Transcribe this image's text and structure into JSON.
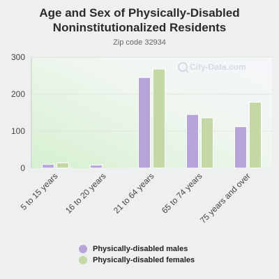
{
  "chart_data": {
    "type": "bar",
    "title_line1": "Age and Sex of Physically-Disabled",
    "title_line2": "Noninstitutionalized Residents",
    "subtitle": "Zip code 32934",
    "watermark": "City-Data.com",
    "categories": [
      "5 to 15 years",
      "16 to 20 years",
      "21 to 64 years",
      "65 to 74 years",
      "75 years and over"
    ],
    "series": [
      {
        "name": "Physically-disabled males",
        "color": "#b7a4d8",
        "values": [
          10,
          8,
          245,
          145,
          112
        ]
      },
      {
        "name": "Physically-disabled females",
        "color": "#c4d8a6",
        "values": [
          14,
          0,
          268,
          136,
          178
        ]
      }
    ],
    "y_ticks": [
      0,
      100,
      200,
      300
    ],
    "ylim": [
      0,
      300
    ],
    "grid": true,
    "legend_position": "bottom"
  }
}
